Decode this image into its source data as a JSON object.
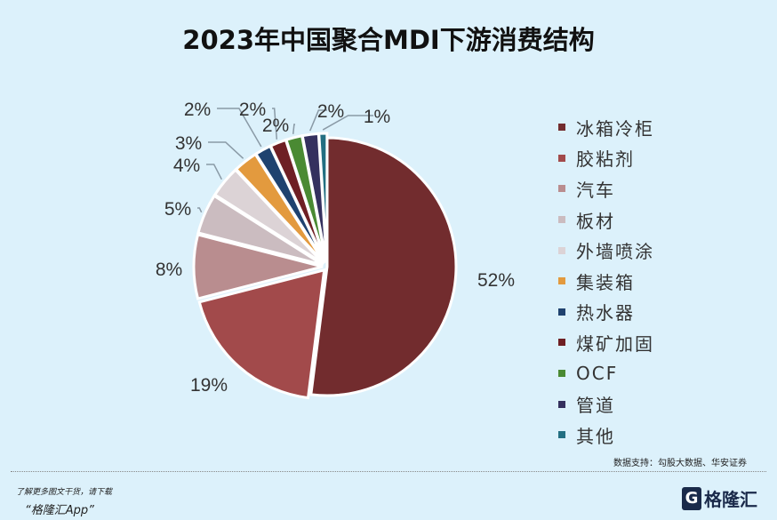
{
  "title": "2023年中国聚合MDI下游消费结构",
  "chart_data": {
    "type": "pie",
    "title": "2023年中国聚合MDI下游消费结构",
    "start": "12 o'clock, clockwise",
    "legend_placement": "right",
    "slices": [
      {
        "name": "冰箱冷柜",
        "value": 52,
        "label": "52%",
        "color": "#722c2e"
      },
      {
        "name": "胶粘剂",
        "value": 19,
        "label": "19%",
        "color": "#a24a4b"
      },
      {
        "name": "汽车",
        "value": 8,
        "label": "8%",
        "color": "#b98d8f"
      },
      {
        "name": "板材",
        "value": 5,
        "label": "5%",
        "color": "#cbbcc0"
      },
      {
        "name": "外墙喷涂",
        "value": 4,
        "label": "4%",
        "color": "#dcd3d6"
      },
      {
        "name": "集装箱",
        "value": 3,
        "label": "3%",
        "color": "#e39a3e"
      },
      {
        "name": "热水器",
        "value": 2,
        "label": "2%",
        "color": "#1f426f"
      },
      {
        "name": "煤矿加固",
        "value": 2,
        "label": "2%",
        "color": "#6e1f24"
      },
      {
        "name": "OCF",
        "value": 2,
        "label": "2%",
        "color": "#4a8a33"
      },
      {
        "name": "管道",
        "value": 2,
        "label": "2%",
        "color": "#34305e"
      },
      {
        "name": "其他",
        "value": 1,
        "label": "1%",
        "color": "#236f82"
      }
    ]
  },
  "source": "数据支持：勾股大数据、华安证券",
  "promo": {
    "line1": "了解更多图文干货，请下载",
    "line2": "“格隆汇App”"
  },
  "logo": {
    "text": "格隆汇",
    "watermark": "格隆汇 | 勾股大数据 www.gogudata.com"
  }
}
